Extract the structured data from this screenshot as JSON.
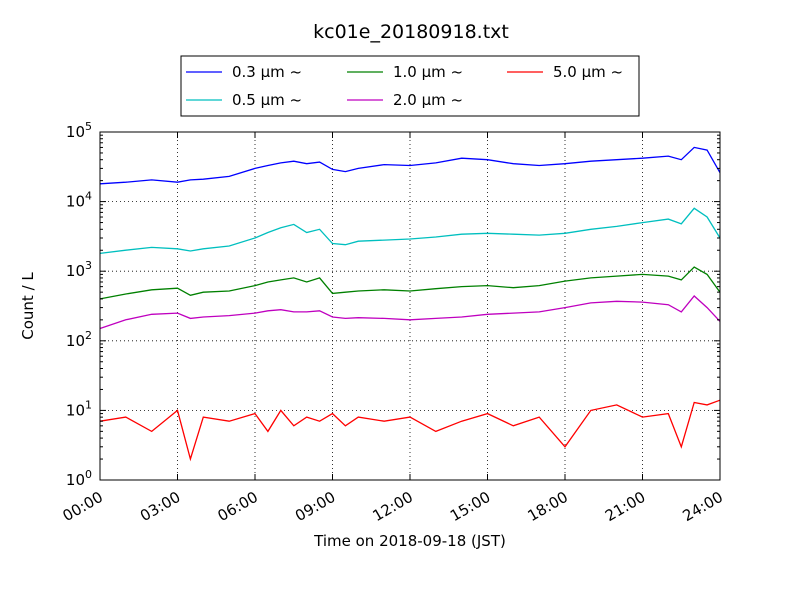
{
  "chart_data": {
    "type": "line",
    "title": "kc01e_20180918.txt",
    "xlabel": "Time on 2018-09-18 (JST)",
    "ylabel": "Count / L",
    "y_scale": "log",
    "ylim": [
      1,
      100000
    ],
    "xlim": [
      "00:00",
      "24:00"
    ],
    "grid": true,
    "legend_placement": "top-center, outside",
    "x_tick_labels": [
      "00:00",
      "03:00",
      "06:00",
      "09:00",
      "12:00",
      "15:00",
      "18:00",
      "21:00",
      "24:00"
    ],
    "y_ticks": [
      {
        "value": 1,
        "base": "10",
        "exp": "0"
      },
      {
        "value": 10,
        "base": "10",
        "exp": "1"
      },
      {
        "value": 100,
        "base": "10",
        "exp": "2"
      },
      {
        "value": 1000,
        "base": "10",
        "exp": "3"
      },
      {
        "value": 10000,
        "base": "10",
        "exp": "4"
      },
      {
        "value": 100000,
        "base": "10",
        "exp": "5"
      }
    ],
    "x_hours": [
      0,
      1,
      2,
      3,
      3.5,
      4,
      5,
      6,
      6.5,
      7,
      7.5,
      8,
      8.5,
      9,
      9.5,
      10,
      11,
      12,
      13,
      14,
      15,
      16,
      17,
      18,
      19,
      20,
      21,
      22,
      22.5,
      23,
      23.5,
      24
    ],
    "series": [
      {
        "name": "0.3 μm ~",
        "color": "#0000ff",
        "values": [
          18000,
          19000,
          20500,
          19000,
          20500,
          21000,
          23000,
          30000,
          33000,
          36000,
          38000,
          35000,
          37000,
          29000,
          27000,
          30000,
          34000,
          33000,
          36000,
          42000,
          40000,
          35000,
          33000,
          35000,
          38000,
          40000,
          42000,
          45000,
          40000,
          60000,
          55000,
          26000
        ]
      },
      {
        "name": "0.5 μm ~",
        "color": "#00bfbf",
        "values": [
          1800,
          2000,
          2200,
          2100,
          1950,
          2100,
          2300,
          3000,
          3600,
          4200,
          4700,
          3600,
          4000,
          2500,
          2400,
          2700,
          2800,
          2900,
          3100,
          3400,
          3500,
          3400,
          3300,
          3500,
          4000,
          4400,
          5000,
          5600,
          4800,
          8000,
          6000,
          3000
        ]
      },
      {
        "name": "1.0 μm ~",
        "color": "#008000",
        "values": [
          400,
          470,
          540,
          570,
          450,
          500,
          520,
          620,
          700,
          750,
          800,
          700,
          800,
          480,
          500,
          520,
          540,
          520,
          560,
          600,
          620,
          580,
          620,
          720,
          800,
          850,
          900,
          850,
          750,
          1150,
          900,
          500
        ]
      },
      {
        "name": "2.0 μm ~",
        "color": "#bf00bf",
        "values": [
          150,
          200,
          240,
          250,
          210,
          220,
          230,
          250,
          270,
          280,
          260,
          260,
          270,
          220,
          210,
          215,
          210,
          200,
          210,
          220,
          240,
          250,
          260,
          300,
          350,
          370,
          360,
          330,
          260,
          440,
          300,
          190
        ]
      },
      {
        "name": "5.0 μm ~",
        "color": "#ff0000",
        "values": [
          7,
          8,
          5,
          10,
          2,
          8,
          7,
          9,
          5,
          10,
          6,
          8,
          7,
          9,
          6,
          8,
          7,
          8,
          5,
          7,
          9,
          6,
          8,
          3,
          10,
          12,
          8,
          9,
          3,
          13,
          12,
          14
        ]
      }
    ]
  }
}
